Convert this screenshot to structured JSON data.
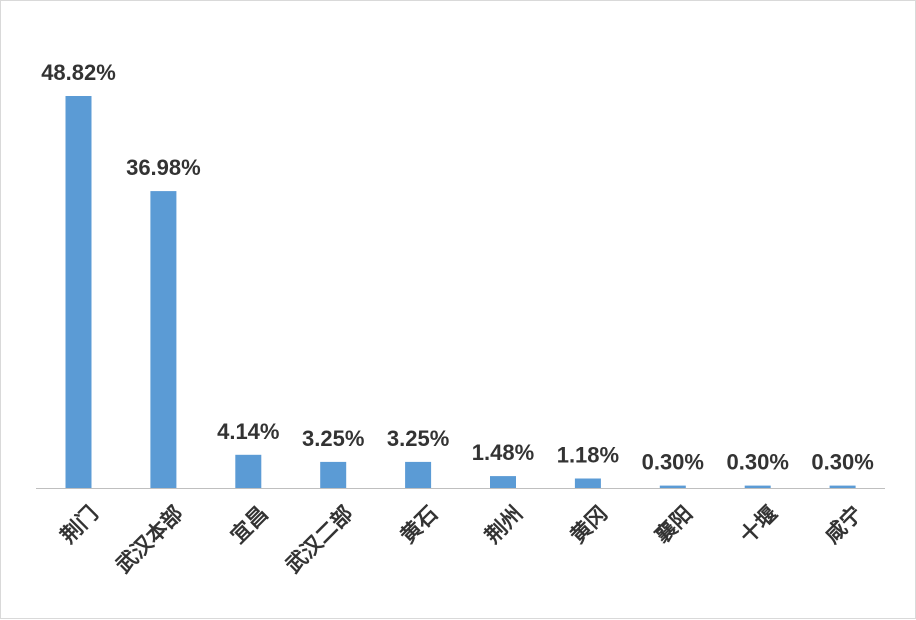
{
  "chart_data": {
    "type": "bar",
    "title": "",
    "xlabel": "",
    "ylabel": "",
    "categories": [
      "荆门",
      "武汉本部",
      "宜昌",
      "武汉二部",
      "黄石",
      "荆州",
      "黄冈",
      "襄阳",
      "十堰",
      "咸宁"
    ],
    "values": [
      48.82,
      36.98,
      4.14,
      3.25,
      3.25,
      1.48,
      1.18,
      0.3,
      0.3,
      0.3
    ],
    "value_labels": [
      "48.82%",
      "36.98%",
      "4.14%",
      "3.25%",
      "3.25%",
      "1.48%",
      "1.18%",
      "0.30%",
      "0.30%",
      "0.30%"
    ],
    "ylim": [
      0,
      48.82
    ],
    "grid": false,
    "legend": "none",
    "bar_color": "#5b9bd5",
    "axis_color": "#bfbfbf",
    "text_color": "#333333"
  }
}
